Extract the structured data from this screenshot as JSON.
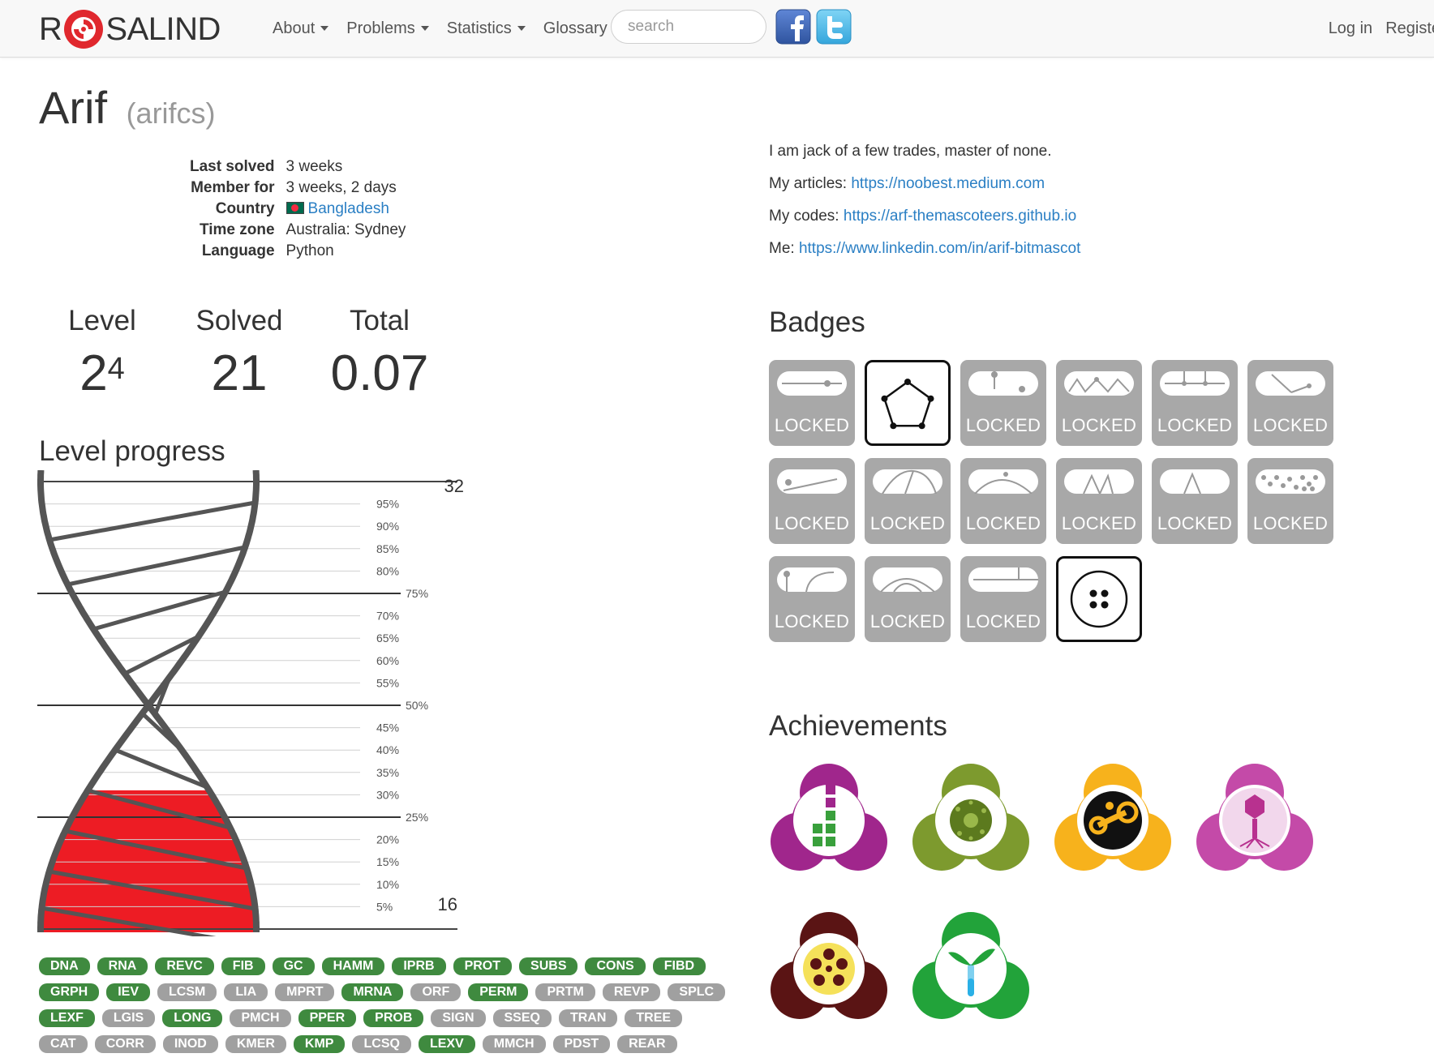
{
  "navbar": {
    "brand_left": "R",
    "brand_right": "SALIND",
    "items": [
      {
        "label": "About",
        "dropdown": true
      },
      {
        "label": "Problems",
        "dropdown": true
      },
      {
        "label": "Statistics",
        "dropdown": true
      },
      {
        "label": "Glossary",
        "dropdown": false
      }
    ],
    "search_placeholder": "search",
    "login": "Log in",
    "register": "Registe"
  },
  "profile": {
    "name": "Arif",
    "handle": "(arifcs)",
    "info": [
      {
        "key": "Last solved",
        "value": "3 weeks"
      },
      {
        "key": "Member for",
        "value": "3 weeks, 2 days"
      },
      {
        "key": "Country",
        "value": "Bangladesh"
      },
      {
        "key": "Time zone",
        "value": "Australia: Sydney"
      },
      {
        "key": "Language",
        "value": "Python"
      }
    ],
    "bio": [
      {
        "text": "I am jack of a few trades, master of none.",
        "link": ""
      },
      {
        "text": "My articles: ",
        "link": "https://noobest.medium.com"
      },
      {
        "text": "My codes: ",
        "link": "https://arf-themascoteers.github.io"
      },
      {
        "text": "Me: ",
        "link": "https://www.linkedin.com/in/arif-bitmascot"
      }
    ]
  },
  "stats": {
    "level_label": "Level",
    "level_base": "2",
    "level_sup": "4",
    "solved_label": "Solved",
    "solved_value": "21",
    "total_label": "Total",
    "total_value": "0.07"
  },
  "level_progress": {
    "title": "Level progress",
    "top_label": "32",
    "bottom_label": "16",
    "fill_fraction": 0.31,
    "ticks": [
      "5%",
      "10%",
      "15%",
      "20%",
      "25%",
      "30%",
      "35%",
      "40%",
      "45%",
      "50%",
      "55%",
      "60%",
      "65%",
      "70%",
      "75%",
      "80%",
      "85%",
      "90%",
      "95%"
    ],
    "fill_color": "#ed1c24"
  },
  "tags": [
    [
      {
        "t": "DNA",
        "s": true
      },
      {
        "t": "RNA",
        "s": true
      },
      {
        "t": "REVC",
        "s": true
      },
      {
        "t": "FIB",
        "s": true
      },
      {
        "t": "GC",
        "s": true
      },
      {
        "t": "HAMM",
        "s": true
      },
      {
        "t": "IPRB",
        "s": true
      },
      {
        "t": "PROT",
        "s": true
      },
      {
        "t": "SUBS",
        "s": true
      },
      {
        "t": "CONS",
        "s": true
      },
      {
        "t": "FIBD",
        "s": true
      }
    ],
    [
      {
        "t": "GRPH",
        "s": true
      },
      {
        "t": "IEV",
        "s": true
      },
      {
        "t": "LCSM",
        "s": false
      },
      {
        "t": "LIA",
        "s": false
      },
      {
        "t": "MPRT",
        "s": false
      },
      {
        "t": "MRNA",
        "s": true
      },
      {
        "t": "ORF",
        "s": false
      },
      {
        "t": "PERM",
        "s": true
      },
      {
        "t": "PRTM",
        "s": false
      },
      {
        "t": "REVP",
        "s": false
      },
      {
        "t": "SPLC",
        "s": false
      }
    ],
    [
      {
        "t": "LEXF",
        "s": true
      },
      {
        "t": "LGIS",
        "s": false
      },
      {
        "t": "LONG",
        "s": true
      },
      {
        "t": "PMCH",
        "s": false
      },
      {
        "t": "PPER",
        "s": true
      },
      {
        "t": "PROB",
        "s": true
      },
      {
        "t": "SIGN",
        "s": false
      },
      {
        "t": "SSEQ",
        "s": false
      },
      {
        "t": "TRAN",
        "s": false
      },
      {
        "t": "TREE",
        "s": false
      }
    ],
    [
      {
        "t": "CAT",
        "s": false
      },
      {
        "t": "CORR",
        "s": false
      },
      {
        "t": "INOD",
        "s": false
      },
      {
        "t": "KMER",
        "s": false
      },
      {
        "t": "KMP",
        "s": true
      },
      {
        "t": "LCSQ",
        "s": false
      },
      {
        "t": "LEXV",
        "s": true
      },
      {
        "t": "MMCH",
        "s": false
      },
      {
        "t": "PDST",
        "s": false
      },
      {
        "t": "REAR",
        "s": false
      }
    ]
  ],
  "badges": {
    "title": "Badges",
    "locked_label": "LOCKED",
    "items": [
      {
        "state": "locked"
      },
      {
        "state": "open",
        "icon": "pentagon-graph-icon"
      },
      {
        "state": "locked"
      },
      {
        "state": "locked"
      },
      {
        "state": "locked"
      },
      {
        "state": "locked"
      },
      {
        "state": "locked"
      },
      {
        "state": "locked"
      },
      {
        "state": "locked"
      },
      {
        "state": "locked"
      },
      {
        "state": "locked"
      },
      {
        "state": "locked"
      },
      {
        "state": "locked"
      },
      {
        "state": "locked"
      },
      {
        "state": "locked"
      },
      {
        "state": "open",
        "icon": "four-dots-circle-icon"
      }
    ]
  },
  "achievements": {
    "title": "Achievements",
    "items": [
      {
        "icon": "blocks-achievement-icon",
        "color": "#a0268c"
      },
      {
        "icon": "cell-achievement-icon",
        "color": "#7d9a2e"
      },
      {
        "icon": "molecule-achievement-icon",
        "color": "#f7b21c"
      },
      {
        "icon": "phage-achievement-icon",
        "color": "#c44aa8"
      },
      {
        "icon": "virus-achievement-icon",
        "color": "#5a1414"
      },
      {
        "icon": "sprout-achievement-icon",
        "color": "#22a33a"
      }
    ]
  }
}
